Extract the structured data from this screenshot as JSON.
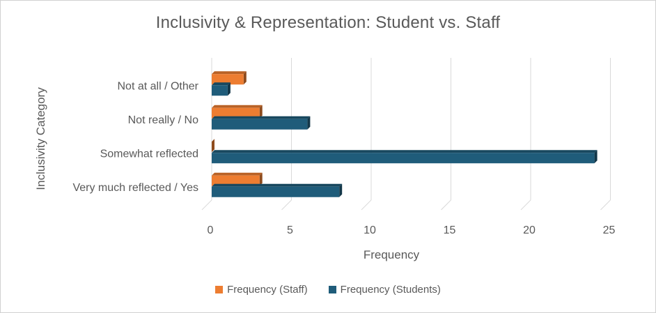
{
  "chart_data": {
    "type": "bar",
    "orientation": "horizontal",
    "title": "Inclusivity & Representation: Student vs. Staff",
    "xlabel": "Frequency",
    "ylabel": "Inclusivity Category",
    "xlim": [
      0,
      25
    ],
    "xticks": [
      "0",
      "5",
      "10",
      "15",
      "20",
      "25"
    ],
    "categories": [
      "Not at all / Other",
      "Not really / No",
      "Somewhat reflected",
      "Very much reflected / Yes"
    ],
    "series": [
      {
        "name": "Frequency (Staff)",
        "color": "#ED7D31",
        "values": [
          2,
          3,
          0,
          3
        ]
      },
      {
        "name": "Frequency (Students)",
        "color": "#1F5C7A",
        "values": [
          1,
          6,
          24,
          8
        ]
      }
    ],
    "grid": true,
    "legend_position": "bottom"
  }
}
